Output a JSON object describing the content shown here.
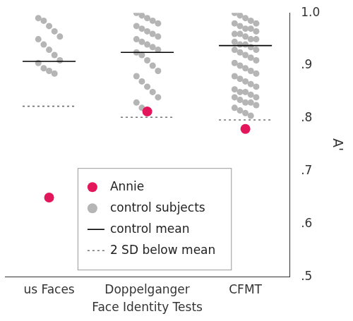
{
  "chart_data": {
    "type": "strip",
    "x_label": "Face Identity Tests",
    "y_label": "A'",
    "categories": [
      "us Faces",
      "Doppelganger",
      "CFMT"
    ],
    "ylim": [
      0.5,
      1.0
    ],
    "yticks": [
      {
        "value": 0.5,
        "label": ".5"
      },
      {
        "value": 0.6,
        "label": ".6"
      },
      {
        "value": 0.7,
        "label": ".7"
      },
      {
        "value": 0.8,
        "label": ".8"
      },
      {
        "value": 0.9,
        "label": ".9"
      },
      {
        "value": 1.0,
        "label": "1.0"
      }
    ],
    "grid": false,
    "legend": "lower center",
    "series": [
      {
        "name": "Annie",
        "type": "scatter",
        "marker": "circle",
        "color": "#e3165b",
        "values": [
          0.65,
          0.813,
          0.78
        ]
      },
      {
        "name": "control subjects",
        "type": "scatter",
        "marker": "circle",
        "color": "#b5b5b5",
        "values": [
          [
            0.99,
            0.985,
            0.975,
            0.965,
            0.955,
            0.95,
            0.94,
            0.93,
            0.92,
            0.91,
            0.905,
            0.895,
            0.89,
            0.885
          ],
          [
            1.0,
            0.995,
            0.99,
            0.985,
            0.98,
            0.975,
            0.97,
            0.965,
            0.96,
            0.955,
            0.95,
            0.945,
            0.94,
            0.935,
            0.93,
            0.925,
            0.92,
            0.91,
            0.9,
            0.89,
            0.88,
            0.87,
            0.86,
            0.85,
            0.84,
            0.83,
            0.82,
            0.815
          ],
          [
            1.0,
            0.995,
            0.99,
            0.985,
            0.98,
            0.98,
            0.975,
            0.97,
            0.97,
            0.965,
            0.96,
            0.96,
            0.955,
            0.95,
            0.95,
            0.945,
            0.94,
            0.94,
            0.935,
            0.93,
            0.93,
            0.925,
            0.92,
            0.915,
            0.91,
            0.905,
            0.9,
            0.895,
            0.89,
            0.885,
            0.88,
            0.875,
            0.87,
            0.865,
            0.86,
            0.855,
            0.85,
            0.85,
            0.845,
            0.84,
            0.84,
            0.835,
            0.83,
            0.83,
            0.825,
            0.82,
            0.815,
            0.81,
            0.805
          ]
        ]
      },
      {
        "name": "control mean",
        "type": "line",
        "line_style": "solid",
        "color": "#000000",
        "values": [
          0.908,
          0.925,
          0.938
        ]
      },
      {
        "name": "2 SD below mean",
        "type": "line",
        "line_style": "dotted",
        "color": "#707070",
        "values": [
          0.823,
          0.802,
          0.797
        ]
      }
    ]
  }
}
